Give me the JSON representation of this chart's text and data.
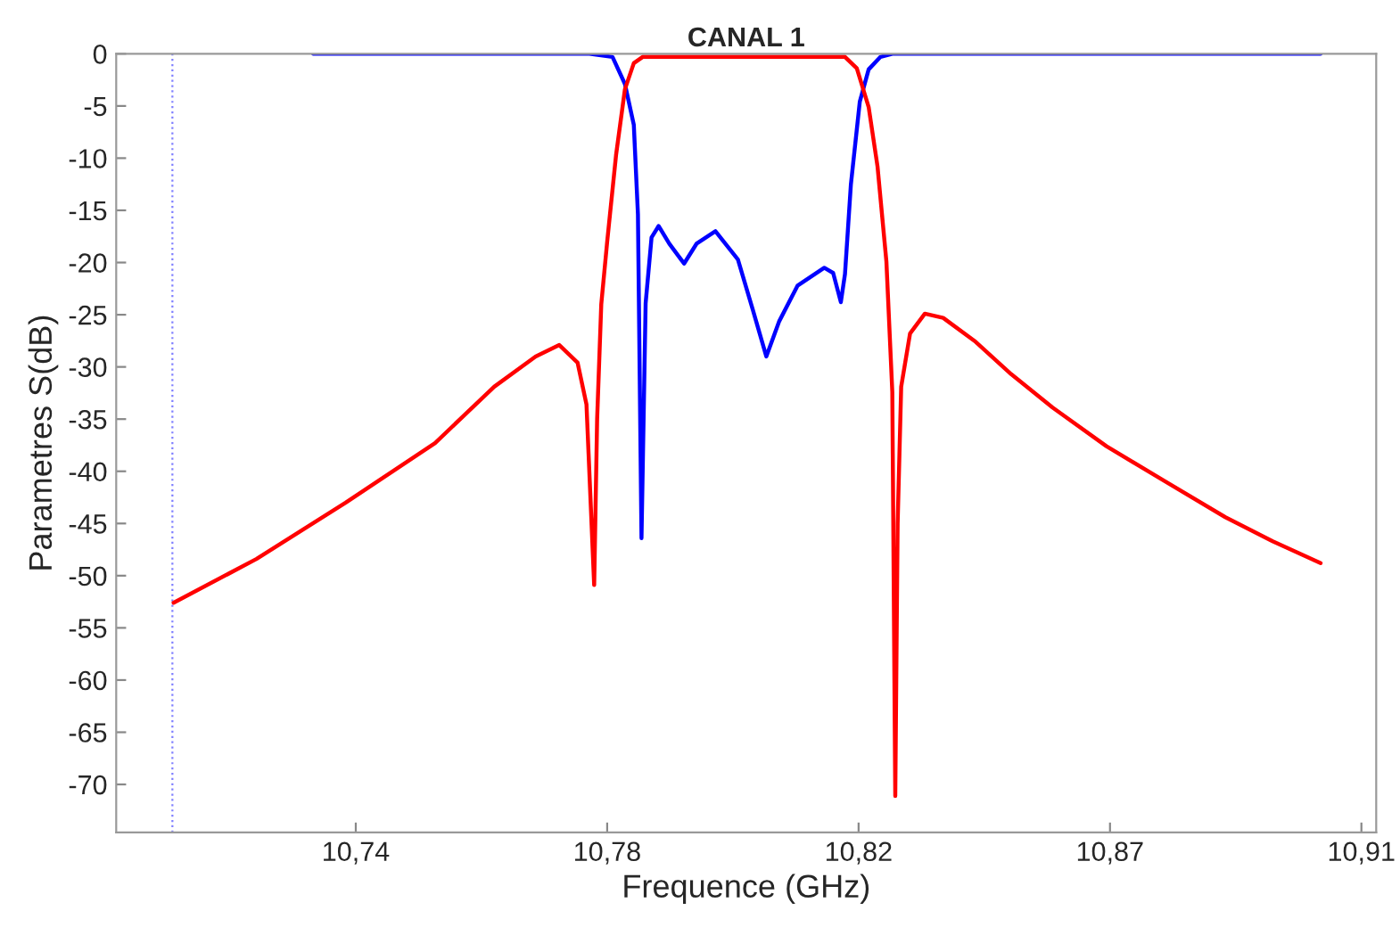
{
  "chart_data": {
    "type": "line",
    "title": "CANAL 1",
    "xlabel": "Frequence (GHz)",
    "ylabel": "Parametres S(dB)",
    "series": [
      {
        "color": "#0000ff",
        "x": [
          10.7328,
          10.7795,
          10.7834,
          10.7855,
          10.787,
          10.7877,
          10.7883,
          10.789,
          10.79,
          10.7912,
          10.793,
          10.7955,
          10.7976,
          10.8008,
          10.8046,
          10.8071,
          10.8094,
          10.8116,
          10.8147,
          10.8192,
          10.8207,
          10.822,
          10.8227,
          10.8237,
          10.8252,
          10.8267,
          10.8287,
          10.8307,
          10.9031
        ],
        "values": [
          0,
          0,
          -0.3,
          -2.9,
          -6.8,
          -15.4,
          -46.4,
          -23.9,
          -17.6,
          -16.5,
          -18.2,
          -20.1,
          -18.2,
          -17.0,
          -19.7,
          -24.5,
          -29.0,
          -25.6,
          -22.2,
          -20.5,
          -21.0,
          -23.8,
          -21.1,
          -12.5,
          -4.6,
          -1.5,
          -0.3,
          0,
          0
        ]
      },
      {
        "color": "#ff0000",
        "x": [
          10.7092,
          10.7232,
          10.7383,
          10.7534,
          10.7634,
          10.7704,
          10.7744,
          10.7775,
          10.779,
          10.7803,
          10.7808,
          10.7815,
          10.7825,
          10.784,
          10.7855,
          10.787,
          10.7885,
          10.8227,
          10.8247,
          10.8267,
          10.8282,
          10.8297,
          10.8307,
          10.8312,
          10.8316,
          10.8322,
          10.8337,
          10.8362,
          10.8393,
          10.8448,
          10.8508,
          10.8578,
          10.8669,
          10.8769,
          10.887,
          10.895,
          10.9031
        ],
        "values": [
          -52.6,
          -48.4,
          -43.0,
          -37.3,
          -31.9,
          -29.0,
          -27.9,
          -29.6,
          -33.6,
          -50.9,
          -35,
          -24,
          -18,
          -9.7,
          -3.4,
          -0.9,
          -0.3,
          -0.3,
          -1.4,
          -5.1,
          -10.8,
          -19.9,
          -32.4,
          -71.1,
          -45,
          -31.9,
          -26.8,
          -24.9,
          -25.3,
          -27.6,
          -30.7,
          -33.9,
          -37.6,
          -41.0,
          -44.4,
          -46.7,
          -48.8
        ]
      }
    ],
    "xlim": [
      10.6995,
      10.9125
    ],
    "xticks": [
      {
        "value": 10.74,
        "label": "10,74"
      },
      {
        "value": 10.7825,
        "label": "10,78"
      },
      {
        "value": 10.825,
        "label": "10,82"
      },
      {
        "value": 10.8675,
        "label": "10,87"
      },
      {
        "value": 10.91,
        "label": "10,91"
      }
    ],
    "ylim": [
      -74.6,
      0
    ],
    "yticks": [
      0,
      -5,
      -10,
      -15,
      -20,
      -25,
      -30,
      -35,
      -40,
      -45,
      -50,
      -55,
      -60,
      -65,
      -70
    ],
    "ref_lines": [
      {
        "axis": "x",
        "value": 10.709,
        "color": "#8080ff",
        "line_style": "dotted"
      }
    ],
    "grid": false,
    "legend": false,
    "line_style": "solid",
    "marker": "none"
  }
}
